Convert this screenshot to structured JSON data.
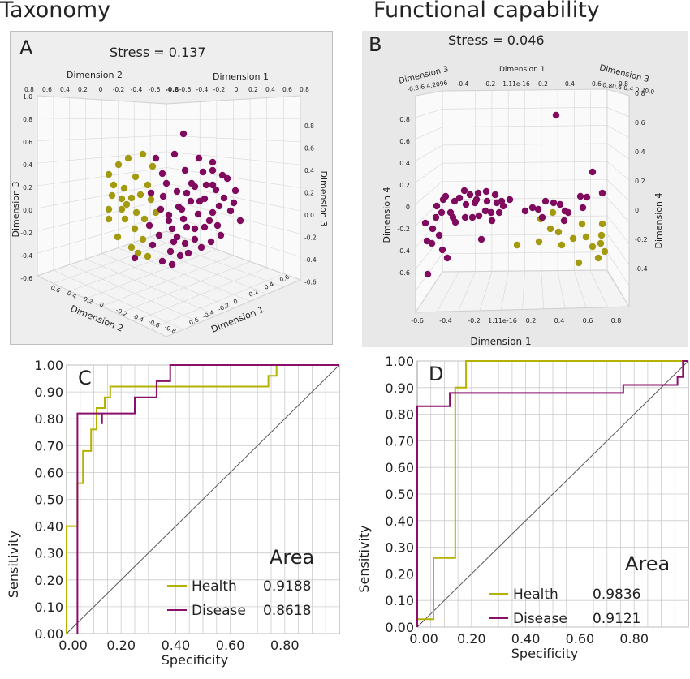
{
  "titles": {
    "left": "Taxonomy",
    "right": "Functional capability"
  },
  "colors": {
    "health": "#b5b100",
    "disease": "#8a0f6a",
    "health_point": "#a39a10",
    "disease_point": "#800b5e",
    "diagonal": "#555555",
    "grid": "#cccccc"
  },
  "chart_data": [
    {
      "panel": "A",
      "type": "scatter",
      "subtitle": "Stress = 0.137",
      "axis_labels": [
        "Dimension 1",
        "Dimension 2",
        "Dimension 3"
      ],
      "top_ticks_dim2": [
        "0.8",
        "0.6",
        "0.4",
        "0.2",
        "0",
        "-0.2",
        "-0.4",
        "-0.6",
        "-0.8"
      ],
      "top_ticks_dim1": [
        "-0.6",
        "-0.4",
        "-0.2",
        "0",
        "0.2",
        "0.4",
        "0.6",
        "0.8"
      ],
      "left_ticks_dim3": [
        "1.0",
        "0.8",
        "0.6",
        "0.4",
        "0.2",
        "0.0",
        "-0.2",
        "-0.4",
        "-0.6"
      ],
      "right_ticks_dim3": [
        "0.8",
        "0.6",
        "0.4",
        "0.2",
        "0.0",
        "-0.2",
        "-0.4",
        "-0.6"
      ],
      "bottom_ticks_dim2": [
        "0.6",
        "0.4",
        "0.2",
        "0",
        "-0.2",
        "-0.4",
        "-0.6",
        "-0.8"
      ],
      "bottom_ticks_dim1": [
        "-0.6",
        "-0.4",
        "-0.2",
        "0",
        "0.2",
        "0.4",
        "0.6"
      ],
      "series": [
        {
          "name": "Health",
          "count": 28
        },
        {
          "name": "Disease",
          "count": 60
        }
      ]
    },
    {
      "panel": "B",
      "type": "scatter",
      "subtitle": "Stress = 0.046",
      "axis_labels": [
        "Dimension 1",
        "Dimension 3",
        "Dimension 4"
      ],
      "top_ticks_dim1": [
        "-0.4",
        "-0.2",
        "1.11e-16",
        "0.2",
        "0.4",
        "0.6",
        "0.8"
      ],
      "top_left_ticks": "-0.8.6.4.2096",
      "top_right_ticks": "0.80.6 0.4 0.20.0",
      "left_ticks_dim4": [
        "0.8",
        "0.6",
        "0.4",
        "0.2",
        "0",
        "-0.2",
        "-0.4",
        "-0.6"
      ],
      "right_ticks_dim4": [
        "0.8",
        "0.6",
        "0.4",
        "0.2",
        "0",
        "-0.2",
        "-0.4"
      ],
      "bottom_ticks_dim1": [
        "-0.6",
        "-0.4",
        "-0.2",
        "1.11e-16",
        "0.2",
        "0.4",
        "0.6",
        "0.8"
      ],
      "series": [
        {
          "name": "Health",
          "count": 14
        },
        {
          "name": "Disease",
          "count": 55
        }
      ]
    },
    {
      "panel": "C",
      "type": "line",
      "xlabel": "Specificity",
      "ylabel": "Sensitivity",
      "xlim": [
        0,
        1
      ],
      "ylim": [
        0,
        1
      ],
      "x_ticks": [
        0,
        0.2,
        0.4,
        0.6,
        0.8
      ],
      "x_tick_labels": [
        "0.00",
        "0.20",
        "0.40",
        "0.60",
        "0.80"
      ],
      "y_ticks": [
        0,
        0.1,
        0.2,
        0.3,
        0.4,
        0.5,
        0.6,
        0.7,
        0.8,
        0.9,
        1.0
      ],
      "y_tick_labels": [
        "0.00",
        "0.10",
        "0.20",
        "0.30",
        "0.40",
        "0.50",
        "0.60",
        "0.70",
        "0.80",
        "0.90",
        "1.00"
      ],
      "grid": true,
      "legend_title": "Area",
      "series": [
        {
          "name": "Health",
          "area": "0.9188",
          "points": [
            [
              0,
              0
            ],
            [
              0,
              0.4
            ],
            [
              0.04,
              0.4
            ],
            [
              0.04,
              0.56
            ],
            [
              0.06,
              0.56
            ],
            [
              0.06,
              0.68
            ],
            [
              0.09,
              0.68
            ],
            [
              0.09,
              0.76
            ],
            [
              0.11,
              0.76
            ],
            [
              0.11,
              0.84
            ],
            [
              0.14,
              0.84
            ],
            [
              0.14,
              0.88
            ],
            [
              0.16,
              0.88
            ],
            [
              0.16,
              0.92
            ],
            [
              0.24,
              0.92
            ],
            [
              0.24,
              0.92
            ],
            [
              0.74,
              0.92
            ],
            [
              0.74,
              0.96
            ],
            [
              0.77,
              0.96
            ],
            [
              0.77,
              1.0
            ],
            [
              1.0,
              1.0
            ]
          ]
        },
        {
          "name": "Disease",
          "area": "0.8618",
          "points": [
            [
              0.04,
              0
            ],
            [
              0.04,
              0.82
            ],
            [
              0.13,
              0.82
            ],
            [
              0.13,
              0.78
            ],
            [
              0.13,
              0.78
            ],
            [
              0.13,
              0.82
            ],
            [
              0.25,
              0.82
            ],
            [
              0.25,
              0.88
            ],
            [
              0.33,
              0.88
            ],
            [
              0.33,
              0.94
            ],
            [
              0.38,
              0.94
            ],
            [
              0.38,
              1.0
            ],
            [
              1.0,
              1.0
            ]
          ]
        }
      ]
    },
    {
      "panel": "D",
      "type": "line",
      "xlabel": "Specificity",
      "ylabel": "Sensitivity",
      "xlim": [
        0,
        1
      ],
      "ylim": [
        0,
        1
      ],
      "x_ticks": [
        0,
        0.2,
        0.4,
        0.6,
        0.8
      ],
      "x_tick_labels": [
        "0.00",
        "0.20",
        "0.40",
        "0.60",
        "0.80"
      ],
      "y_ticks": [
        0,
        0.1,
        0.2,
        0.3,
        0.4,
        0.5,
        0.6,
        0.7,
        0.8,
        0.9,
        1.0
      ],
      "y_tick_labels": [
        "0.00",
        "0.10",
        "0.20",
        "0.30",
        "0.40",
        "0.50",
        "0.60",
        "0.70",
        "0.80",
        "0.90",
        "1.00"
      ],
      "grid": true,
      "legend_title": "Area",
      "series": [
        {
          "name": "Health",
          "area": "0.9836",
          "points": [
            [
              0,
              0
            ],
            [
              0,
              0.03
            ],
            [
              0.06,
              0.03
            ],
            [
              0.06,
              0.26
            ],
            [
              0.14,
              0.26
            ],
            [
              0.14,
              0.9
            ],
            [
              0.18,
              0.9
            ],
            [
              0.18,
              1.0
            ],
            [
              1.0,
              1.0
            ]
          ]
        },
        {
          "name": "Disease",
          "area": "0.9121",
          "points": [
            [
              0,
              0
            ],
            [
              0,
              0.83
            ],
            [
              0.12,
              0.83
            ],
            [
              0.12,
              0.88
            ],
            [
              0.76,
              0.88
            ],
            [
              0.76,
              0.91
            ],
            [
              0.96,
              0.91
            ],
            [
              0.96,
              0.94
            ],
            [
              0.98,
              0.94
            ],
            [
              0.98,
              1.0
            ],
            [
              1.0,
              1.0
            ]
          ]
        }
      ]
    }
  ]
}
